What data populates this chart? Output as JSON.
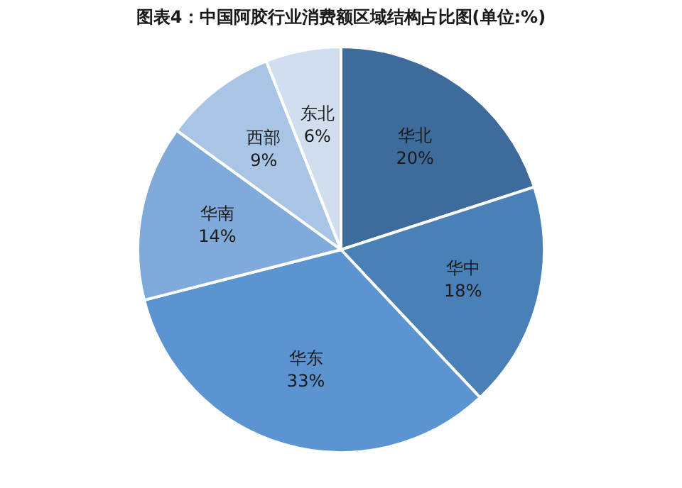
{
  "chart_data": {
    "type": "pie",
    "title": "图表4：中国阿胶行业消费额区域结构占比图(单位:%)",
    "categories": [
      "华北",
      "华中",
      "华东",
      "华南",
      "西部",
      "东北"
    ],
    "values": [
      20,
      18,
      33,
      14,
      9,
      6
    ],
    "colors": [
      "#3d6b9c",
      "#4a80b8",
      "#5b94d0",
      "#80aad9",
      "#a9c5e5",
      "#d0def0"
    ],
    "value_labels": [
      "20%",
      "18%",
      "33%",
      "14%",
      "9%",
      "6%"
    ],
    "legend": false
  }
}
